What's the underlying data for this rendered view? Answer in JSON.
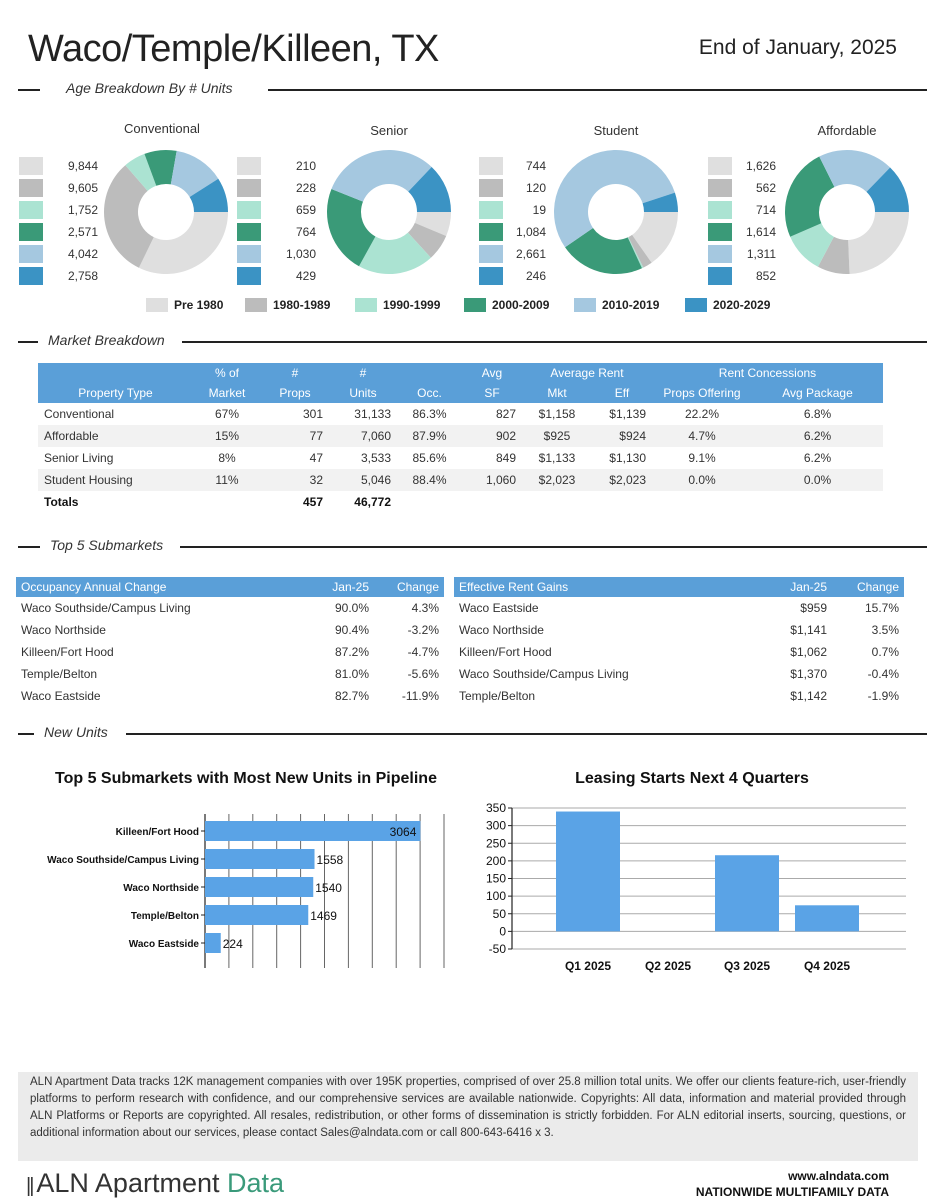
{
  "header": {
    "title": "Waco/Temple/Killeen, TX",
    "date": "End of January, 2025"
  },
  "sections": {
    "age": "Age Breakdown By # Units",
    "market": "Market Breakdown",
    "top5": "Top 5 Submarkets",
    "new_units": "New Units"
  },
  "colors": {
    "pre1980": "#dfdfdf",
    "c1980": "#bcbcbc",
    "c1990": "#abe3d2",
    "c2000": "#3a9a78",
    "c2010": "#a5c8e0",
    "c2020": "#3b93c4",
    "header_blue": "#5a9fd8",
    "bar_blue": "#5aa3e6"
  },
  "age_legend": [
    "Pre 1980",
    "1980-1989",
    "1990-1999",
    "2000-2009",
    "2010-2019",
    "2020-2029"
  ],
  "donuts": [
    {
      "title": "Conventional",
      "values": [
        "9,844",
        "9,605",
        "1,752",
        "2,571",
        "4,042",
        "2,758"
      ],
      "nums": [
        9844,
        9605,
        1752,
        2571,
        4042,
        2758
      ]
    },
    {
      "title": "Senior",
      "values": [
        "210",
        "228",
        "659",
        "764",
        "1,030",
        "429"
      ],
      "nums": [
        210,
        228,
        659,
        764,
        1030,
        429
      ]
    },
    {
      "title": "Student",
      "values": [
        "744",
        "120",
        "19",
        "1,084",
        "2,661",
        "246"
      ],
      "nums": [
        744,
        120,
        19,
        1084,
        2661,
        246
      ]
    },
    {
      "title": "Affordable",
      "values": [
        "1,626",
        "562",
        "714",
        "1,614",
        "1,311",
        "852"
      ],
      "nums": [
        1626,
        562,
        714,
        1614,
        1311,
        852
      ]
    }
  ],
  "market": {
    "header_top": [
      "",
      "% of",
      "#",
      "#",
      "",
      "Avg",
      "Average Rent",
      "Rent Concessions"
    ],
    "header_bottom": [
      "Property Type",
      "Market",
      "Props",
      "Units",
      "Occ.",
      "SF",
      "Mkt",
      "Eff",
      "Props Offering",
      "Avg Package"
    ],
    "rows": [
      [
        "Conventional",
        "67%",
        "301",
        "31,133",
        "86.3%",
        "827",
        "$1,158",
        "$1,139",
        "22.2%",
        "6.8%"
      ],
      [
        "Affordable",
        "15%",
        "77",
        "7,060",
        "87.9%",
        "902",
        "$925",
        "$924",
        "4.7%",
        "6.2%"
      ],
      [
        "Senior Living",
        "8%",
        "47",
        "3,533",
        "85.6%",
        "849",
        "$1,133",
        "$1,130",
        "9.1%",
        "6.2%"
      ],
      [
        "Student Housing",
        "11%",
        "32",
        "5,046",
        "88.4%",
        "1,060",
        "$2,023",
        "$2,023",
        "0.0%",
        "0.0%"
      ]
    ],
    "totals": {
      "label": "Totals",
      "props": "457",
      "units": "46,772"
    }
  },
  "occupancy": {
    "headers": [
      "Occupancy Annual Change",
      "Jan-25",
      "Change"
    ],
    "rows": [
      [
        "Waco Southside/Campus Living",
        "90.0%",
        "4.3%"
      ],
      [
        "Waco Northside",
        "90.4%",
        "-3.2%"
      ],
      [
        "Killeen/Fort Hood",
        "87.2%",
        "-4.7%"
      ],
      [
        "Temple/Belton",
        "81.0%",
        "-5.6%"
      ],
      [
        "Waco Eastside",
        "82.7%",
        "-11.9%"
      ]
    ]
  },
  "rent_gains": {
    "headers": [
      "Effective Rent Gains",
      "Jan-25",
      "Change"
    ],
    "rows": [
      [
        "Waco Eastside",
        "$959",
        "15.7%"
      ],
      [
        "Waco Northside",
        "$1,141",
        "3.5%"
      ],
      [
        "Killeen/Fort Hood",
        "$1,062",
        "0.7%"
      ],
      [
        "Waco Southside/Campus Living",
        "$1,370",
        "-0.4%"
      ],
      [
        "Temple/Belton",
        "$1,142",
        "-1.9%"
      ]
    ]
  },
  "chart_data": [
    {
      "type": "bar",
      "orientation": "horizontal",
      "title": "Top 5 Submarkets with Most New Units in Pipeline",
      "categories": [
        "Killeen/Fort Hood",
        "Waco Southside/Campus Living",
        "Waco Northside",
        "Temple/Belton",
        "Waco Eastside"
      ],
      "values": [
        3064,
        1558,
        1540,
        1469,
        224
      ],
      "xlim": [
        0,
        3400
      ],
      "grid": true
    },
    {
      "type": "bar",
      "title": "Leasing Starts Next 4 Quarters",
      "categories": [
        "Q1 2025",
        "Q2 2025",
        "Q3 2025",
        "Q4 2025"
      ],
      "values": [
        340,
        0,
        216,
        74
      ],
      "ylim": [
        -50,
        350
      ],
      "yticks": [
        "350",
        "300",
        "250",
        "200",
        "150",
        "100",
        "50",
        "0",
        "-50"
      ],
      "grid": true
    }
  ],
  "footer": {
    "text": "ALN Apartment Data tracks 12K management companies with over 195K properties, comprised of over 25.8 million total units. We offer our clients feature-rich, user-friendly platforms to perform research with confidence, and our comprehensive services are available nationwide. Copyrights: All data, information and material provided through ALN Platforms or Reports are copyrighted.  All resales, redistribution, or other forms of dissemination is strictly forbidden. For ALN editorial inserts, sourcing, questions, or additional information about our services, please contact Sales@alndata.com or call 800-643-6416 x 3.",
    "brand_main": "ALN Apartment ",
    "brand_accent": "Data",
    "website": "www.alndata.com",
    "tagline": "NATIONWIDE MULTIFAMILY DATA"
  }
}
